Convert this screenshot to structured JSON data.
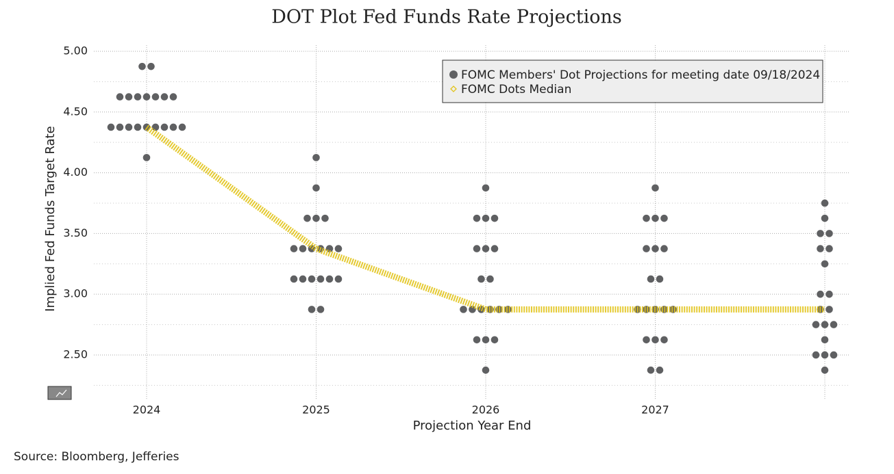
{
  "chart_data": {
    "type": "dot-plot",
    "title": "DOT Plot Fed Funds Rate Projections",
    "y_label": "Implied Fed Funds Target Rate",
    "x_label": "Projection Year End",
    "source": "Source: Bloomberg, Jefferies",
    "categories": [
      "2024",
      "2025",
      "2026",
      "2027",
      null
    ],
    "ylim": [
      2.13,
      5.05
    ],
    "yticks": [
      {
        "value": 2.5,
        "label": "2.50"
      },
      {
        "value": 3,
        "label": "3.00"
      },
      {
        "value": 3.5,
        "label": "3.50"
      },
      {
        "value": 4,
        "label": "4.00"
      },
      {
        "value": 4.5,
        "label": "4.50"
      },
      {
        "value": 5,
        "label": "5.00"
      }
    ],
    "minor_yticks": [
      2.25,
      2.75,
      3.25,
      3.75,
      4.25,
      4.75
    ],
    "grid": true,
    "legend": "upper-right",
    "series": [
      {
        "name": "FOMC Members' Dot Projections for meeting date 09/18/2024",
        "color": "#5f6062",
        "values": [
          [
            4.875,
            4.875,
            4.625,
            4.625,
            4.625,
            4.625,
            4.625,
            4.625,
            4.625,
            4.375,
            4.375,
            4.375,
            4.375,
            4.375,
            4.375,
            4.375,
            4.375,
            4.375,
            4.125
          ],
          [
            4.125,
            3.875,
            3.625,
            3.625,
            3.625,
            3.375,
            3.375,
            3.375,
            3.375,
            3.375,
            3.375,
            3.125,
            3.125,
            3.125,
            3.125,
            3.125,
            3.125,
            2.875,
            2.875
          ],
          [
            3.875,
            3.625,
            3.625,
            3.625,
            3.375,
            3.375,
            3.375,
            3.125,
            3.125,
            2.875,
            2.875,
            2.875,
            2.875,
            2.875,
            2.875,
            2.625,
            2.625,
            2.625,
            2.375
          ],
          [
            3.875,
            3.625,
            3.625,
            3.625,
            3.375,
            3.375,
            3.375,
            3.125,
            3.125,
            2.875,
            2.875,
            2.875,
            2.875,
            2.875,
            2.625,
            2.625,
            2.625,
            2.375,
            2.375
          ],
          [
            3.75,
            3.625,
            3.5,
            3.5,
            3.375,
            3.375,
            3.25,
            3,
            3,
            2.875,
            2.875,
            2.75,
            2.75,
            2.75,
            2.625,
            2.5,
            2.5,
            2.5,
            2.375
          ]
        ]
      },
      {
        "name": "FOMC Dots Median",
        "color": "#e2c41c",
        "values": [
          4.375,
          3.375,
          2.875,
          2.875,
          2.875
        ]
      }
    ]
  }
}
